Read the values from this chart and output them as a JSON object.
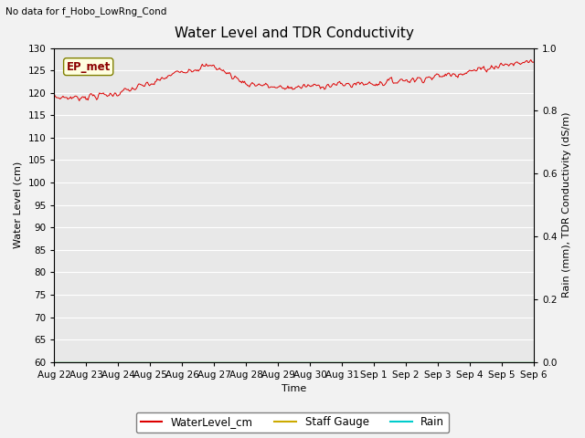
{
  "title": "Water Level and TDR Conductivity",
  "no_data_text": "No data for f_Hobo_LowRng_Cond",
  "ylabel_left": "Water Level (cm)",
  "ylabel_right": "Rain (mm), TDR Conductivity (dS/m)",
  "xlabel": "Time",
  "ylim_left": [
    60,
    130
  ],
  "ylim_right": [
    0.0,
    1.0
  ],
  "yticks_left": [
    60,
    65,
    70,
    75,
    80,
    85,
    90,
    95,
    100,
    105,
    110,
    115,
    120,
    125,
    130
  ],
  "yticks_right": [
    0.0,
    0.2,
    0.4,
    0.6,
    0.8,
    1.0
  ],
  "xtick_labels": [
    "Aug 22",
    "Aug 23",
    "Aug 24",
    "Aug 25",
    "Aug 26",
    "Aug 27",
    "Aug 28",
    "Aug 29",
    "Aug 30",
    "Aug 31",
    "Sep 1",
    "Sep 2",
    "Sep 3",
    "Sep 4",
    "Sep 5",
    "Sep 6"
  ],
  "ep_met_label": "EP_met",
  "legend_labels": [
    "WaterLevel_cm",
    "Staff Gauge",
    "Rain"
  ],
  "legend_colors": [
    "#dd0000",
    "#ccaa00",
    "#00cccc"
  ],
  "line_color_water": "#dd0000",
  "line_color_staff": "#ccaa00",
  "line_color_rain": "#00cccc",
  "bg_color": "#e8e8e8",
  "fig_bg": "#f2f2f2",
  "title_fontsize": 11,
  "axis_label_fontsize": 8,
  "tick_fontsize": 7.5,
  "seed": 7
}
